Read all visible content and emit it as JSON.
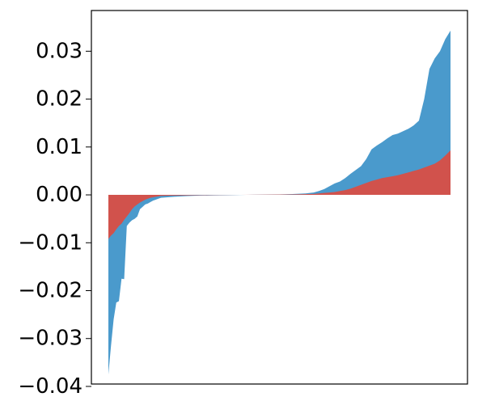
{
  "chart_data": {
    "type": "area",
    "title": "",
    "xlabel": "",
    "ylabel": "",
    "ylim": [
      -0.0395,
      0.0385
    ],
    "grid": false,
    "legend": "none",
    "x_ticks_visible": false,
    "yticks": [
      {
        "value": 0.03,
        "label": "0.03"
      },
      {
        "value": 0.02,
        "label": "0.02"
      },
      {
        "value": 0.01,
        "label": "0.01"
      },
      {
        "value": 0.0,
        "label": "0.00"
      },
      {
        "value": -0.01,
        "label": "−0.01"
      },
      {
        "value": -0.02,
        "label": "−0.02"
      },
      {
        "value": -0.03,
        "label": "−0.03"
      },
      {
        "value": -0.04,
        "label": "−0.04"
      }
    ],
    "series": [
      {
        "color": "#4a9acc",
        "x": [
          0,
          1,
          2,
          3,
          4,
          5,
          6,
          7,
          8,
          9,
          10,
          11,
          12,
          13,
          14,
          15,
          16,
          17,
          18,
          19,
          20,
          25,
          30,
          35,
          40,
          45,
          50,
          55,
          60,
          65,
          70,
          75,
          78,
          80,
          82,
          84,
          86,
          88,
          90,
          92,
          94,
          96,
          98,
          100,
          102,
          104,
          106,
          108,
          110,
          112,
          114,
          116,
          118,
          120,
          122,
          124,
          126,
          128,
          130
        ],
        "values": [
          -0.0375,
          -0.0315,
          -0.026,
          -0.0225,
          -0.0222,
          -0.0175,
          -0.0176,
          -0.0065,
          -0.0058,
          -0.0053,
          -0.005,
          -0.0045,
          -0.003,
          -0.0025,
          -0.002,
          -0.0018,
          -0.0015,
          -0.0012,
          -0.001,
          -0.0008,
          -0.0006,
          -0.0004,
          -0.00025,
          -0.00015,
          -0.0001,
          -5e-05,
          -2e-05,
          2e-05,
          5e-05,
          0.0001,
          0.00018,
          0.0003,
          0.0005,
          0.0008,
          0.0012,
          0.0018,
          0.0024,
          0.0028,
          0.0035,
          0.0044,
          0.0052,
          0.006,
          0.0075,
          0.0095,
          0.0103,
          0.011,
          0.0118,
          0.0125,
          0.0128,
          0.0133,
          0.0138,
          0.0145,
          0.0155,
          0.02,
          0.0263,
          0.0285,
          0.03,
          0.0325,
          0.0343
        ]
      },
      {
        "color": "#d1524c",
        "x": [
          0,
          1,
          2,
          3,
          4,
          5,
          6,
          7,
          8,
          9,
          10,
          11,
          12,
          13,
          14,
          15,
          16,
          17,
          18,
          19,
          20,
          25,
          30,
          35,
          40,
          45,
          50,
          55,
          60,
          65,
          70,
          75,
          78,
          80,
          82,
          84,
          86,
          88,
          90,
          92,
          94,
          96,
          98,
          100,
          102,
          104,
          106,
          108,
          110,
          112,
          114,
          116,
          118,
          120,
          122,
          124,
          126,
          128,
          130
        ],
        "values": [
          -0.0092,
          -0.0085,
          -0.008,
          -0.0072,
          -0.0065,
          -0.006,
          -0.0052,
          -0.0045,
          -0.0038,
          -0.003,
          -0.0024,
          -0.002,
          -0.0016,
          -0.0013,
          -0.001,
          -0.0008,
          -0.0006,
          -0.0005,
          -0.0004,
          -0.0003,
          -0.0002,
          -0.00015,
          -0.0001,
          -6e-05,
          -4e-05,
          -2e-05,
          0.0,
          2e-05,
          4e-05,
          6e-05,
          0.0001,
          0.00015,
          0.0002,
          0.0003,
          0.0004,
          0.0005,
          0.0006,
          0.0008,
          0.001,
          0.0013,
          0.0017,
          0.0021,
          0.0025,
          0.0029,
          0.0032,
          0.0035,
          0.0037,
          0.0039,
          0.0041,
          0.0044,
          0.0047,
          0.005,
          0.0053,
          0.0057,
          0.0061,
          0.0065,
          0.0072,
          0.0082,
          0.0093
        ]
      }
    ]
  }
}
